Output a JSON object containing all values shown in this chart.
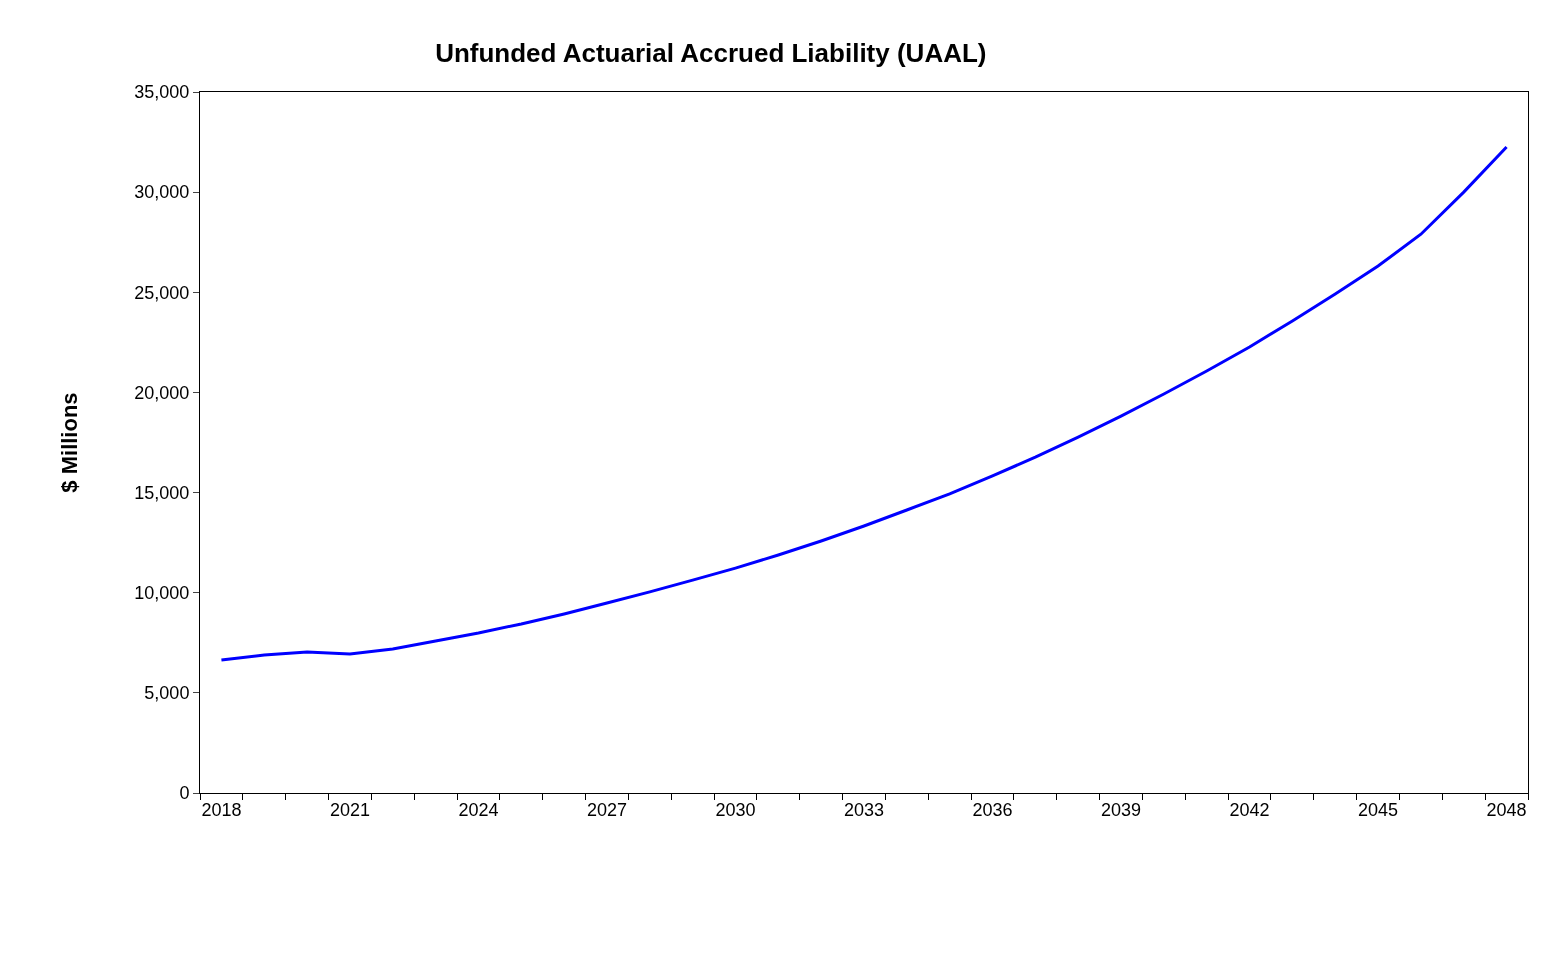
{
  "chart_data": {
    "type": "line",
    "title": "Unfunded Actuarial Accrued Liability (UAAL)",
    "ylabel": "$ Millions",
    "categories": [
      "2018",
      null,
      null,
      "2021",
      null,
      null,
      "2024",
      null,
      null,
      "2027",
      null,
      null,
      "2030",
      null,
      null,
      "2033",
      null,
      null,
      "2036",
      null,
      null,
      "2039",
      null,
      null,
      "2042",
      null,
      null,
      "2045",
      null,
      null,
      "2048"
    ],
    "series": [
      {
        "color": "#0000ff",
        "values": [
          6640,
          6890,
          7040,
          6940,
          7190,
          7590,
          7990,
          8440,
          8940,
          9490,
          10040,
          10630,
          11230,
          11880,
          12580,
          13330,
          14130,
          14930,
          15830,
          16770,
          17770,
          18820,
          19920,
          21070,
          22270,
          23570,
          24910,
          26310,
          27900,
          30000,
          32250
        ]
      }
    ],
    "ylim": [
      0,
      35000
    ],
    "yticks": [
      {
        "value": 0,
        "label": "0"
      },
      {
        "value": 5000,
        "label": "5,000"
      },
      {
        "value": 10000,
        "label": "10,000"
      },
      {
        "value": 15000,
        "label": "15,000"
      },
      {
        "value": 20000,
        "label": "20,000"
      },
      {
        "value": 25000,
        "label": "25,000"
      },
      {
        "value": 30000,
        "label": "30,000"
      },
      {
        "value": 35000,
        "label": "35,000"
      }
    ],
    "grid": false,
    "marker": "none",
    "line_style": "solid"
  }
}
